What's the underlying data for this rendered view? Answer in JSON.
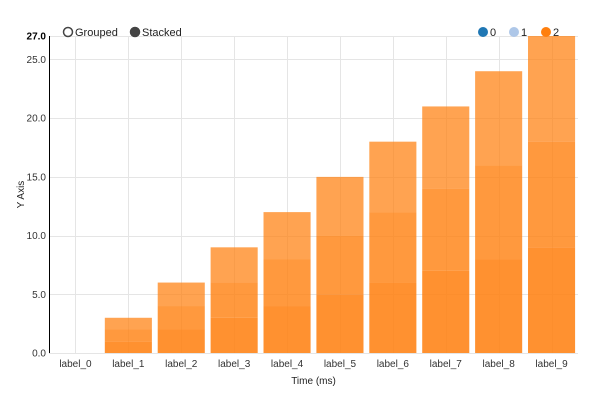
{
  "controls": [
    {
      "label": "Grouped",
      "selected": false
    },
    {
      "label": "Stacked",
      "selected": true
    }
  ],
  "colors": {
    "series": [
      "#1f77b4",
      "#aec7e8",
      "#ff7f0e"
    ],
    "bar_fill": "#ff7f0e",
    "grid": "#e5e5e5"
  },
  "chart_data": {
    "type": "bar",
    "mode": "stacked",
    "categories": [
      "label_0",
      "label_1",
      "label_2",
      "label_3",
      "label_4",
      "label_5",
      "label_6",
      "label_7",
      "label_8",
      "label_9"
    ],
    "series": [
      {
        "name": "0",
        "values": [
          0,
          1,
          2,
          3,
          4,
          5,
          6,
          7,
          8,
          9
        ]
      },
      {
        "name": "1",
        "values": [
          0,
          1,
          2,
          3,
          4,
          5,
          6,
          7,
          8,
          9
        ]
      },
      {
        "name": "2",
        "values": [
          0,
          1,
          2,
          3,
          4,
          5,
          6,
          7,
          8,
          9
        ]
      }
    ],
    "xlabel": "Time (ms)",
    "ylabel": "Y Axis",
    "ylim": [
      0,
      27
    ],
    "yticks": [
      0,
      5,
      10,
      15,
      20,
      25
    ],
    "ytick_labels": [
      "0.0",
      "5.0",
      "10.0",
      "15.0",
      "20.0",
      "25.0"
    ],
    "ymax_label": "27.0",
    "grid": true,
    "legend_position": "top-right"
  }
}
